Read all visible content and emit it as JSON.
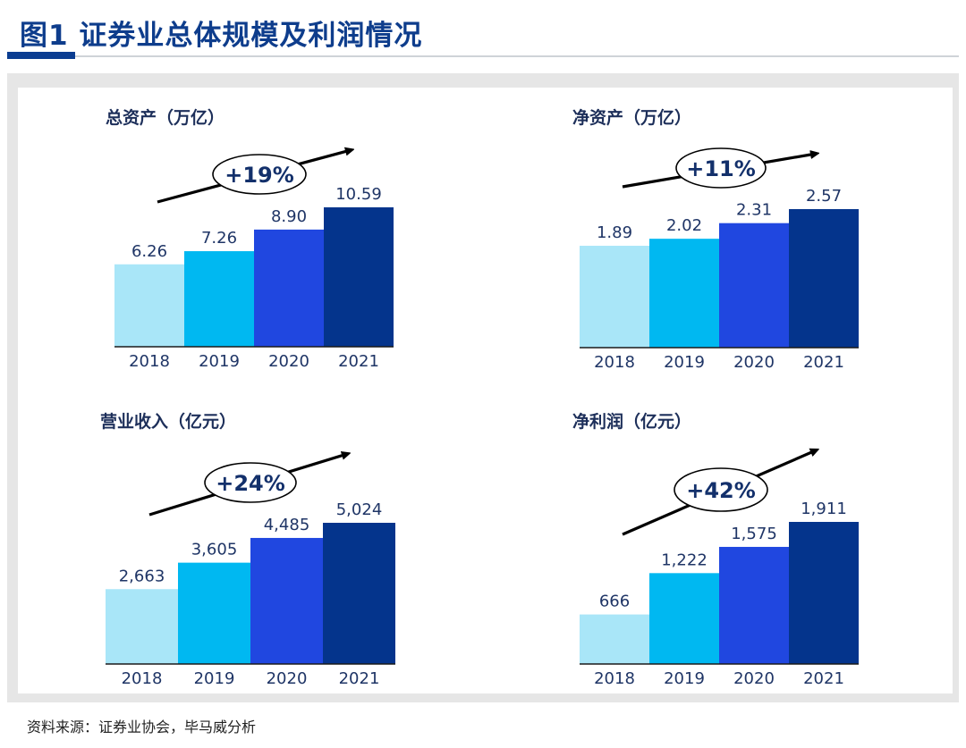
{
  "figure_title": "图1  证券业总体规模及利润情况",
  "source": "资料来源：证券业协会，毕马威分析",
  "colors": [
    "#a9e6f8",
    "#00b8f1",
    "#2047e0",
    "#04348c"
  ],
  "chart_data": [
    {
      "type": "bar",
      "title": "总资产（万亿）",
      "categories": [
        "2018",
        "2019",
        "2020",
        "2021"
      ],
      "values": [
        6.26,
        7.26,
        8.9,
        10.59
      ],
      "value_labels": [
        "6.26",
        "7.26",
        "8.90",
        "10.59"
      ],
      "growth_label": "+19%",
      "ylim": [
        0,
        10.59
      ]
    },
    {
      "type": "bar",
      "title": "净资产（万亿）",
      "categories": [
        "2018",
        "2019",
        "2020",
        "2021"
      ],
      "values": [
        1.89,
        2.02,
        2.31,
        2.57
      ],
      "value_labels": [
        "1.89",
        "2.02",
        "2.31",
        "2.57"
      ],
      "growth_label": "+11%",
      "ylim": [
        0,
        2.57
      ]
    },
    {
      "type": "bar",
      "title": "营业收入（亿元）",
      "categories": [
        "2018",
        "2019",
        "2020",
        "2021"
      ],
      "values": [
        2663,
        3605,
        4485,
        5024
      ],
      "value_labels": [
        "2,663",
        "3,605",
        "4,485",
        "5,024"
      ],
      "growth_label": "+24%",
      "ylim": [
        0,
        5024
      ]
    },
    {
      "type": "bar",
      "title": "净利润（亿元）",
      "categories": [
        "2018",
        "2019",
        "2020",
        "2021"
      ],
      "values": [
        666,
        1222,
        1575,
        1911
      ],
      "value_labels": [
        "666",
        "1,222",
        "1,575",
        "1,911"
      ],
      "growth_label": "+42%",
      "ylim": [
        0,
        1911
      ]
    }
  ]
}
